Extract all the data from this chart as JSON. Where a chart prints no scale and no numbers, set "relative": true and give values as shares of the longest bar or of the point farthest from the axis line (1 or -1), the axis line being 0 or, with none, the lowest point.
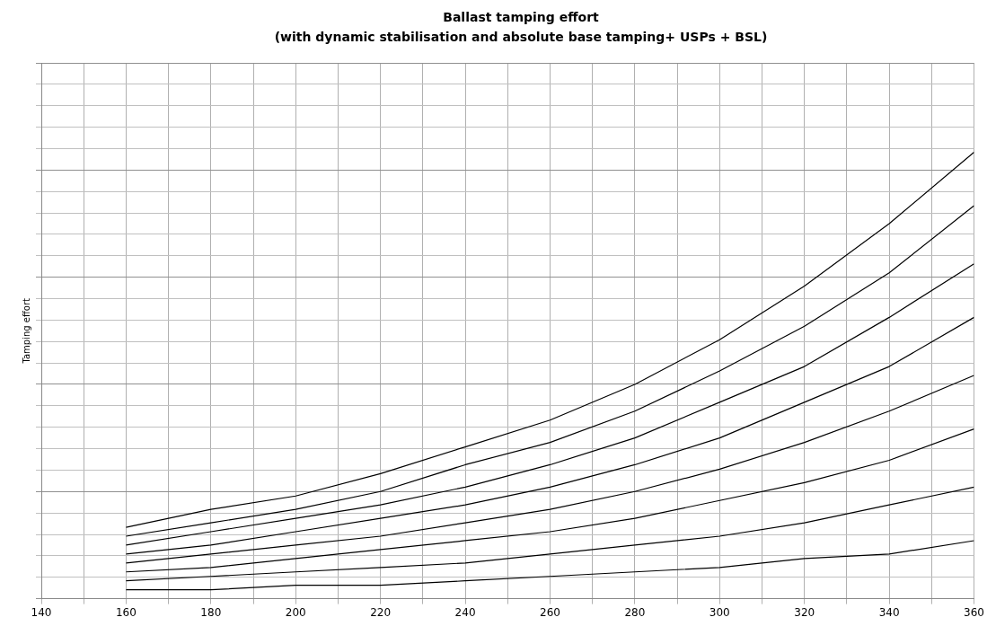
{
  "chart_data": {
    "type": "line",
    "title": "Ballast tamping effort",
    "subtitle": "(with dynamic stabilisation and absolute base tamping+ USPs + BSL)",
    "ylabel": "Tamping effort",
    "relative": true,
    "x": [
      160,
      180,
      200,
      220,
      240,
      260,
      280,
      300,
      320,
      340,
      360
    ],
    "xlim": [
      140,
      360
    ],
    "xticks": [
      140,
      {
        "value": 150,
        "label": null
      },
      160,
      {
        "value": 170,
        "label": null
      },
      180,
      {
        "value": 190,
        "label": null
      },
      200,
      {
        "value": 210,
        "label": null
      },
      220,
      {
        "value": 230,
        "label": null
      },
      240,
      {
        "value": 250,
        "label": null
      },
      260,
      {
        "value": 270,
        "label": null
      },
      280,
      {
        "value": 290,
        "label": null
      },
      300,
      {
        "value": 310,
        "label": null
      },
      320,
      {
        "value": 330,
        "label": null
      },
      340,
      {
        "value": 350,
        "label": null
      },
      360
    ],
    "grid": true,
    "legend": false,
    "marker": "none",
    "line_style": "solid",
    "series": [
      {
        "color": "#000000",
        "values": [
          0.16,
          0.2,
          0.23,
          0.28,
          0.34,
          0.4,
          0.48,
          0.58,
          0.7,
          0.84,
          1.0
        ]
      },
      {
        "color": "#000000",
        "values": [
          0.14,
          0.17,
          0.2,
          0.24,
          0.3,
          0.35,
          0.42,
          0.51,
          0.61,
          0.73,
          0.88
        ]
      },
      {
        "color": "#000000",
        "values": [
          0.12,
          0.15,
          0.18,
          0.21,
          0.25,
          0.3,
          0.36,
          0.44,
          0.52,
          0.63,
          0.75
        ]
      },
      {
        "color": "#000000",
        "values": [
          0.1,
          0.12,
          0.15,
          0.18,
          0.21,
          0.25,
          0.3,
          0.36,
          0.44,
          0.52,
          0.63
        ]
      },
      {
        "color": "#000000",
        "values": [
          0.08,
          0.1,
          0.12,
          0.14,
          0.17,
          0.2,
          0.24,
          0.29,
          0.35,
          0.42,
          0.5
        ]
      },
      {
        "color": "#000000",
        "values": [
          0.06,
          0.07,
          0.09,
          0.11,
          0.13,
          0.15,
          0.18,
          0.22,
          0.26,
          0.31,
          0.38
        ]
      },
      {
        "color": "#000000",
        "values": [
          0.04,
          0.05,
          0.06,
          0.07,
          0.08,
          0.1,
          0.12,
          0.14,
          0.17,
          0.21,
          0.25
        ]
      },
      {
        "color": "#000000",
        "values": [
          0.02,
          0.02,
          0.03,
          0.03,
          0.04,
          0.05,
          0.06,
          0.07,
          0.09,
          0.1,
          0.13
        ]
      }
    ]
  }
}
